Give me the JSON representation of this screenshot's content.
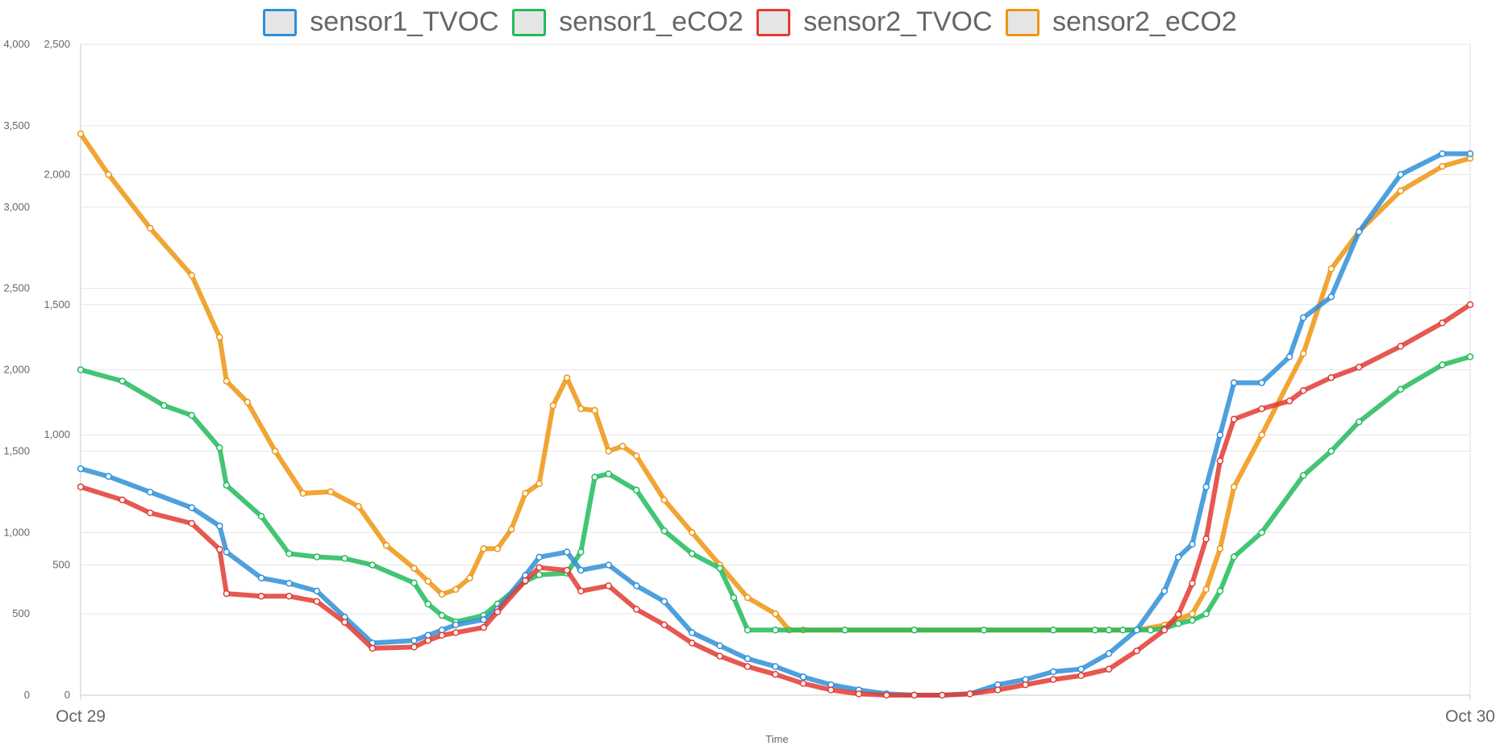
{
  "legend": [
    {
      "name": "sensor1_TVOC",
      "color": "#2f8fd8"
    },
    {
      "name": "sensor1_eCO2",
      "color": "#22bb5c"
    },
    {
      "name": "sensor2_TVOC",
      "color": "#e23b32"
    },
    {
      "name": "sensor2_eCO2",
      "color": "#ee9512"
    }
  ],
  "chart_data": {
    "type": "line",
    "title": "",
    "xlabel": "Time",
    "x_ticks": [
      "Oct 29",
      "Oct 30"
    ],
    "x_range": [
      "Oct 29",
      "Oct 30"
    ],
    "x_unit": "fraction of day",
    "left_axis": {
      "ylim": [
        0,
        4000
      ],
      "ticks": [
        0,
        500,
        1000,
        1500,
        2000,
        2500,
        3000,
        3500,
        4000
      ],
      "tick_labels": [
        "0",
        "500",
        "1,000",
        "1,500",
        "2,000",
        "2,500",
        "3,000",
        "3,500",
        "4,000"
      ]
    },
    "right_axis": {
      "ylim": [
        0,
        2500
      ],
      "ticks": [
        0,
        500,
        1000,
        1500,
        2000,
        2500
      ],
      "tick_labels": [
        "0",
        "500",
        "1,000",
        "1,500",
        "2,000",
        "2,500"
      ]
    },
    "grid": true,
    "legend_position": "top",
    "series": [
      {
        "name": "sensor1_TVOC",
        "axis": "right",
        "color": "#2f8fd8",
        "x": [
          0,
          0.02,
          0.05,
          0.08,
          0.1,
          0.105,
          0.13,
          0.15,
          0.17,
          0.19,
          0.21,
          0.24,
          0.25,
          0.26,
          0.27,
          0.29,
          0.3,
          0.32,
          0.33,
          0.35,
          0.36,
          0.38,
          0.4,
          0.42,
          0.44,
          0.46,
          0.48,
          0.5,
          0.52,
          0.54,
          0.56,
          0.58,
          0.6,
          0.62,
          0.64,
          0.66,
          0.68,
          0.7,
          0.72,
          0.74,
          0.76,
          0.78,
          0.79,
          0.8,
          0.81,
          0.82,
          0.83,
          0.85,
          0.87,
          0.88,
          0.9,
          0.92,
          0.95,
          0.98,
          1
        ],
        "values": [
          870,
          840,
          780,
          720,
          650,
          550,
          450,
          430,
          400,
          300,
          200,
          210,
          230,
          250,
          270,
          290,
          330,
          460,
          530,
          550,
          480,
          500,
          420,
          360,
          240,
          190,
          140,
          110,
          70,
          40,
          20,
          5,
          0,
          0,
          5,
          40,
          60,
          90,
          100,
          160,
          250,
          400,
          530,
          580,
          800,
          1000,
          1200,
          1200,
          1300,
          1450,
          1530,
          1780,
          2000,
          2080,
          2080
        ]
      },
      {
        "name": "sensor1_eCO2",
        "axis": "left",
        "color": "#22bb5c",
        "x": [
          0,
          0.03,
          0.06,
          0.08,
          0.1,
          0.105,
          0.13,
          0.15,
          0.17,
          0.19,
          0.21,
          0.24,
          0.25,
          0.26,
          0.27,
          0.29,
          0.3,
          0.32,
          0.33,
          0.35,
          0.36,
          0.37,
          0.38,
          0.4,
          0.42,
          0.44,
          0.46,
          0.47,
          0.48,
          0.5,
          0.55,
          0.6,
          0.65,
          0.7,
          0.73,
          0.74,
          0.75,
          0.76,
          0.77,
          0.78,
          0.79,
          0.8,
          0.81,
          0.82,
          0.83,
          0.85,
          0.88,
          0.9,
          0.92,
          0.95,
          0.98,
          1
        ],
        "values": [
          2000,
          1930,
          1780,
          1720,
          1520,
          1290,
          1100,
          870,
          850,
          840,
          800,
          690,
          560,
          490,
          450,
          490,
          560,
          700,
          740,
          750,
          880,
          1340,
          1360,
          1260,
          1010,
          870,
          780,
          600,
          400,
          400,
          400,
          400,
          400,
          400,
          400,
          400,
          400,
          400,
          400,
          410,
          440,
          460,
          500,
          640,
          850,
          1000,
          1350,
          1500,
          1680,
          1880,
          2030,
          2080
        ]
      },
      {
        "name": "sensor2_TVOC",
        "axis": "right",
        "color": "#e23b32",
        "x": [
          0,
          0.03,
          0.05,
          0.08,
          0.1,
          0.105,
          0.13,
          0.15,
          0.17,
          0.19,
          0.21,
          0.24,
          0.25,
          0.26,
          0.27,
          0.29,
          0.3,
          0.32,
          0.33,
          0.35,
          0.36,
          0.38,
          0.4,
          0.42,
          0.44,
          0.46,
          0.48,
          0.5,
          0.52,
          0.54,
          0.56,
          0.58,
          0.6,
          0.62,
          0.64,
          0.66,
          0.68,
          0.7,
          0.72,
          0.74,
          0.76,
          0.78,
          0.79,
          0.8,
          0.81,
          0.82,
          0.83,
          0.85,
          0.87,
          0.88,
          0.9,
          0.92,
          0.95,
          0.98,
          1
        ],
        "values": [
          800,
          750,
          700,
          660,
          560,
          390,
          380,
          380,
          360,
          280,
          180,
          185,
          210,
          230,
          240,
          260,
          320,
          440,
          490,
          480,
          400,
          420,
          330,
          270,
          200,
          150,
          110,
          80,
          45,
          20,
          5,
          0,
          0,
          0,
          5,
          20,
          40,
          60,
          75,
          100,
          170,
          250,
          310,
          430,
          600,
          900,
          1060,
          1100,
          1130,
          1170,
          1220,
          1260,
          1340,
          1430,
          1500
        ]
      },
      {
        "name": "sensor2_eCO2",
        "axis": "left",
        "color": "#ee9512",
        "x": [
          0,
          0.02,
          0.05,
          0.08,
          0.1,
          0.105,
          0.12,
          0.14,
          0.16,
          0.18,
          0.2,
          0.22,
          0.24,
          0.25,
          0.26,
          0.27,
          0.28,
          0.29,
          0.3,
          0.31,
          0.32,
          0.33,
          0.34,
          0.35,
          0.36,
          0.37,
          0.38,
          0.39,
          0.4,
          0.42,
          0.44,
          0.46,
          0.48,
          0.5,
          0.51,
          0.52,
          0.55,
          0.6,
          0.65,
          0.7,
          0.73,
          0.74,
          0.76,
          0.78,
          0.8,
          0.81,
          0.82,
          0.83,
          0.85,
          0.88,
          0.9,
          0.92,
          0.95,
          0.98,
          1
        ],
        "values": [
          3450,
          3200,
          2870,
          2580,
          2200,
          1930,
          1800,
          1500,
          1240,
          1250,
          1160,
          920,
          780,
          700,
          620,
          650,
          720,
          900,
          900,
          1020,
          1240,
          1300,
          1780,
          1950,
          1760,
          1750,
          1500,
          1530,
          1470,
          1200,
          1000,
          800,
          600,
          500,
          400,
          400,
          400,
          400,
          400,
          400,
          400,
          400,
          400,
          430,
          500,
          650,
          900,
          1280,
          1600,
          2100,
          2620,
          2850,
          3100,
          3250,
          3300
        ]
      }
    ]
  }
}
